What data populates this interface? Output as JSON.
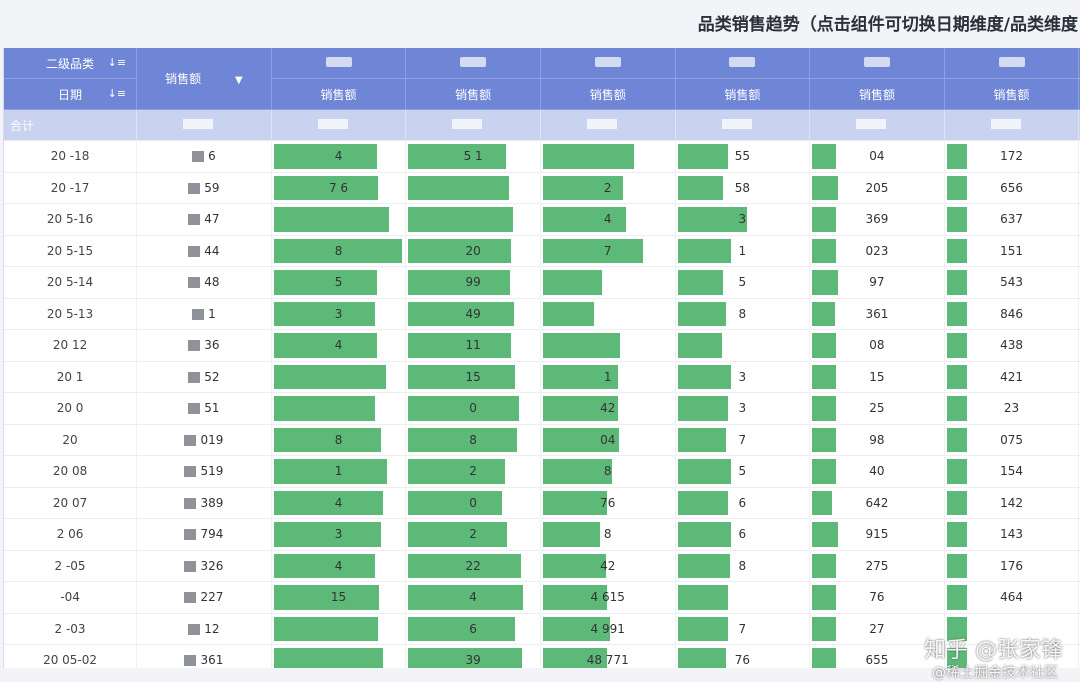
{
  "title": "品类销售趋势（点击组件可切换日期维度/品类维度",
  "header": {
    "row1_label": "二级品类",
    "row2_label": "日期",
    "sales_label": "销售额",
    "sub_label": "销售额",
    "categories": [
      "",
      "",
      "",
      "",
      "",
      "",
      ""
    ]
  },
  "total_label": "合计",
  "rows": [
    {
      "date": "20   -18",
      "sales": "6",
      "c": [
        {
          "v": "4",
          "f": 0.77
        },
        {
          "v": "5 1",
          "f": 0.73
        },
        {
          "v": "",
          "f": 0.68
        },
        {
          "v": "55",
          "f": 0.38
        },
        {
          "v": "04",
          "f": 0.18
        },
        {
          "v": "172",
          "f": 0.15
        },
        {
          "v": "",
          "f": 0.15
        }
      ]
    },
    {
      "date": "20   -17",
      "sales": "59",
      "c": [
        {
          "v": "7  6",
          "f": 0.78
        },
        {
          "v": "",
          "f": 0.75
        },
        {
          "v": "2",
          "f": 0.6
        },
        {
          "v": "58",
          "f": 0.34
        },
        {
          "v": "205",
          "f": 0.19
        },
        {
          "v": "656",
          "f": 0.15
        },
        {
          "v": "",
          "f": 0.12
        }
      ]
    },
    {
      "date": "20   5-16",
      "sales": "47",
      "c": [
        {
          "v": "",
          "f": 0.86
        },
        {
          "v": "",
          "f": 0.78
        },
        {
          "v": "4",
          "f": 0.62
        },
        {
          "v": "3",
          "f": 0.52
        },
        {
          "v": "369",
          "f": 0.18
        },
        {
          "v": "637",
          "f": 0.15
        },
        {
          "v": "",
          "f": 0.12
        }
      ]
    },
    {
      "date": "20   5-15",
      "sales": "44",
      "c": [
        {
          "v": "8",
          "f": 0.96
        },
        {
          "v": "20",
          "f": 0.77
        },
        {
          "v": "7",
          "f": 0.75
        },
        {
          "v": "1",
          "f": 0.4
        },
        {
          "v": "023",
          "f": 0.18
        },
        {
          "v": "151",
          "f": 0.15
        },
        {
          "v": "2",
          "f": 0.12
        }
      ]
    },
    {
      "date": "20   5-14",
      "sales": "48",
      "c": [
        {
          "v": "5",
          "f": 0.77
        },
        {
          "v": "99",
          "f": 0.76
        },
        {
          "v": "",
          "f": 0.44
        },
        {
          "v": "5",
          "f": 0.34
        },
        {
          "v": "97",
          "f": 0.19
        },
        {
          "v": "543",
          "f": 0.15
        },
        {
          "v": "",
          "f": 0.12
        }
      ]
    },
    {
      "date": "20   5-13",
      "sales": "1",
      "c": [
        {
          "v": "3",
          "f": 0.76
        },
        {
          "v": "49",
          "f": 0.79
        },
        {
          "v": "",
          "f": 0.38
        },
        {
          "v": "8",
          "f": 0.36
        },
        {
          "v": "361",
          "f": 0.17
        },
        {
          "v": "846",
          "f": 0.15
        },
        {
          "v": "",
          "f": 0.12
        }
      ]
    },
    {
      "date": "20    12",
      "sales": "36",
      "c": [
        {
          "v": "4",
          "f": 0.77
        },
        {
          "v": "11",
          "f": 0.77
        },
        {
          "v": "",
          "f": 0.58
        },
        {
          "v": "",
          "f": 0.33
        },
        {
          "v": "08",
          "f": 0.18
        },
        {
          "v": "438",
          "f": 0.15
        },
        {
          "v": "",
          "f": 0.12
        }
      ]
    },
    {
      "date": "20   1",
      "sales": "52",
      "c": [
        {
          "v": "",
          "f": 0.84
        },
        {
          "v": "15",
          "f": 0.8
        },
        {
          "v": "1",
          "f": 0.56
        },
        {
          "v": "3",
          "f": 0.4
        },
        {
          "v": "15",
          "f": 0.18
        },
        {
          "v": "421",
          "f": 0.15
        },
        {
          "v": "12",
          "f": 0.15
        }
      ]
    },
    {
      "date": "20   0",
      "sales": "51",
      "c": [
        {
          "v": "",
          "f": 0.76
        },
        {
          "v": "0",
          "f": 0.83
        },
        {
          "v": "42",
          "f": 0.56
        },
        {
          "v": "3",
          "f": 0.38
        },
        {
          "v": "25",
          "f": 0.18
        },
        {
          "v": "23",
          "f": 0.15
        },
        {
          "v": "11",
          "f": 0.15
        }
      ]
    },
    {
      "date": "20",
      "sales": "019",
      "c": [
        {
          "v": "8",
          "f": 0.8
        },
        {
          "v": "8",
          "f": 0.81
        },
        {
          "v": "04",
          "f": 0.57
        },
        {
          "v": "7",
          "f": 0.36
        },
        {
          "v": "98",
          "f": 0.18
        },
        {
          "v": "075",
          "f": 0.15
        },
        {
          "v": "12",
          "f": 0.15
        }
      ]
    },
    {
      "date": "20   08",
      "sales": "519",
      "c": [
        {
          "v": "1",
          "f": 0.85
        },
        {
          "v": "2",
          "f": 0.72
        },
        {
          "v": "8",
          "f": 0.52
        },
        {
          "v": "5",
          "f": 0.4
        },
        {
          "v": "40",
          "f": 0.18
        },
        {
          "v": "154",
          "f": 0.15
        },
        {
          "v": "12",
          "f": 0.15
        }
      ]
    },
    {
      "date": "20   07",
      "sales": "389",
      "c": [
        {
          "v": "4",
          "f": 0.82
        },
        {
          "v": "0",
          "f": 0.7
        },
        {
          "v": "76",
          "f": 0.48
        },
        {
          "v": "6",
          "f": 0.38
        },
        {
          "v": "642",
          "f": 0.15
        },
        {
          "v": "142",
          "f": 0.15
        },
        {
          "v": "12",
          "f": 0.12
        }
      ]
    },
    {
      "date": "2   06",
      "sales": "794",
      "c": [
        {
          "v": "3",
          "f": 0.8
        },
        {
          "v": "2",
          "f": 0.74
        },
        {
          "v": "8",
          "f": 0.43
        },
        {
          "v": "6",
          "f": 0.4
        },
        {
          "v": "915",
          "f": 0.19
        },
        {
          "v": "143",
          "f": 0.15
        },
        {
          "v": "",
          "f": 0.12
        }
      ]
    },
    {
      "date": "2   -05",
      "sales": "326",
      "c": [
        {
          "v": "4",
          "f": 0.76
        },
        {
          "v": "22",
          "f": 0.84
        },
        {
          "v": "42",
          "f": 0.47
        },
        {
          "v": "8",
          "f": 0.39
        },
        {
          "v": "275",
          "f": 0.18
        },
        {
          "v": "176",
          "f": 0.15
        },
        {
          "v": "",
          "f": 0.12
        }
      ]
    },
    {
      "date": "   -04",
      "sales": "227",
      "c": [
        {
          "v": "15",
          "f": 0.79
        },
        {
          "v": "4",
          "f": 0.86
        },
        {
          "v": "4 615",
          "f": 0.48
        },
        {
          "v": "",
          "f": 0.38
        },
        {
          "v": "76",
          "f": 0.18
        },
        {
          "v": "464",
          "f": 0.15
        },
        {
          "v": "",
          "f": 0.12
        }
      ]
    },
    {
      "date": "2   -03",
      "sales": "12",
      "c": [
        {
          "v": "",
          "f": 0.78
        },
        {
          "v": "6",
          "f": 0.8
        },
        {
          "v": "4 991",
          "f": 0.5
        },
        {
          "v": "7",
          "f": 0.38
        },
        {
          "v": "27",
          "f": 0.18
        },
        {
          "v": "",
          "f": 0.15
        },
        {
          "v": "",
          "f": 0.12
        }
      ]
    },
    {
      "date": "20   05-02",
      "sales": "361",
      "c": [
        {
          "v": "",
          "f": 0.82
        },
        {
          "v": "39",
          "f": 0.85
        },
        {
          "v": "48 771",
          "f": 0.48
        },
        {
          "v": "76",
          "f": 0.36
        },
        {
          "v": "655",
          "f": 0.18
        },
        {
          "v": "",
          "f": 0.15
        },
        {
          "v": "",
          "f": 0.12
        }
      ]
    }
  ],
  "watermark": "知乎 @张家锋",
  "watermark_sub": "@稀土掘金技术社区",
  "colors": {
    "header": "#6f86d6",
    "total": "#c9d2ef",
    "bar": "#5cb978"
  }
}
